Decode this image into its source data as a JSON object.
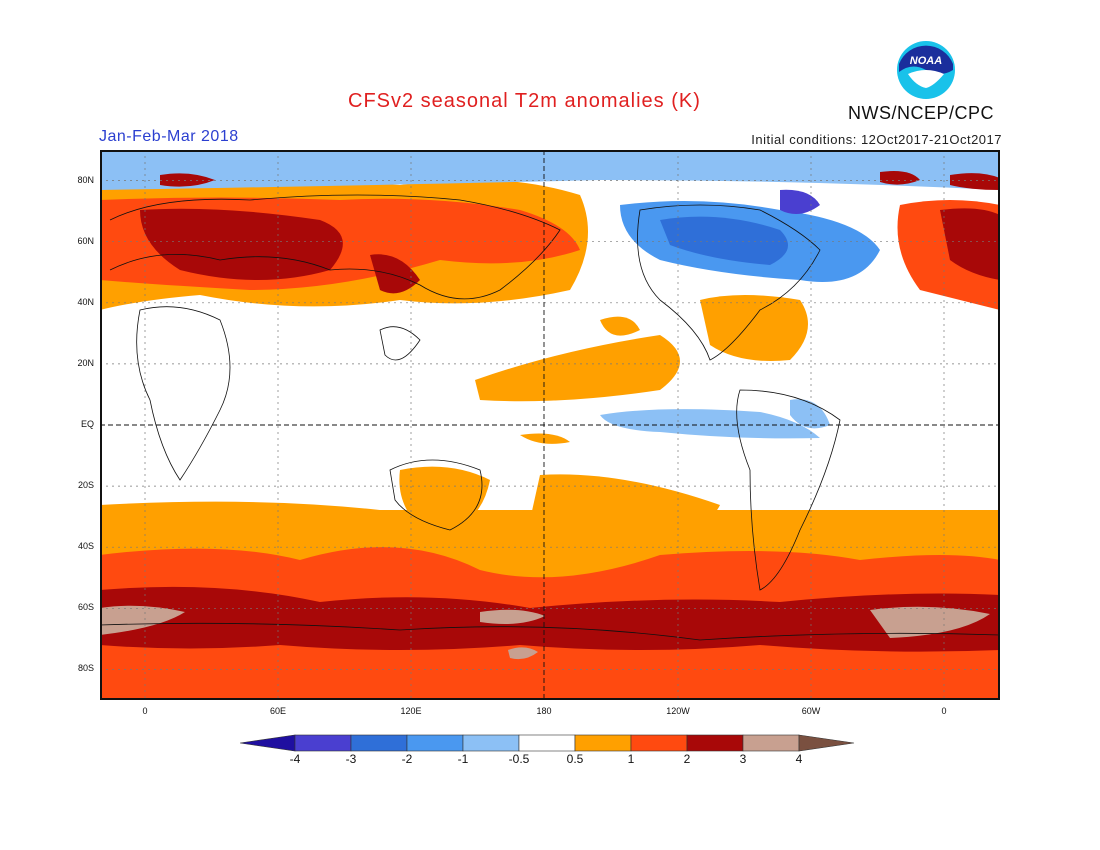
{
  "header": {
    "title": "CFSv2 seasonal T2m anomalies (K)",
    "period": "Jan-Feb-Mar 2018",
    "initial_conditions": "Initial conditions: 12Oct2017-21Oct2017",
    "agency": "NWS/NCEP/CPC",
    "logo_text": "NOAA"
  },
  "map": {
    "lat_labels": [
      "80N",
      "60N",
      "40N",
      "20N",
      "EQ",
      "20S",
      "40S",
      "60S",
      "80S"
    ],
    "lon_labels": [
      "0",
      "60E",
      "120E",
      "180",
      "120W",
      "60W",
      "0"
    ]
  },
  "legend": {
    "labels": [
      "-4",
      "-3",
      "-2",
      "-1",
      "-0.5",
      "0.5",
      "1",
      "2",
      "3",
      "4"
    ],
    "colors": [
      "#1f0fa0",
      "#4a3fd0",
      "#2f6fd8",
      "#4a98f0",
      "#8cc0f5",
      "#ffffff",
      "#ffa000",
      "#ff4a10",
      "#a80808",
      "#c8a090",
      "#7a5040"
    ]
  }
}
